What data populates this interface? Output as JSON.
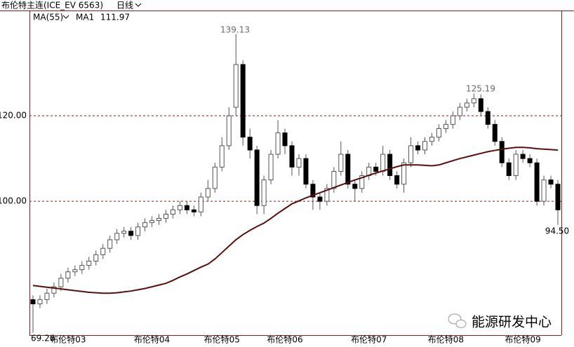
{
  "header": {
    "symbol": "布伦特主连(ICE_EV 6563)",
    "period": "日线"
  },
  "watermark": "能源研发中心",
  "chart_data": {
    "type": "candlestick",
    "indicator": "MA(55)",
    "categories": [
      null,
      null,
      null,
      null,
      null,
      "布伦特03",
      null,
      null,
      null,
      null,
      null,
      null,
      null,
      null,
      null,
      null,
      null,
      "布伦特04",
      null,
      null,
      null,
      null,
      null,
      null,
      null,
      null,
      null,
      "布伦特05",
      null,
      null,
      null,
      null,
      null,
      null,
      null,
      null,
      "布伦特06",
      null,
      null,
      null,
      null,
      null,
      null,
      null,
      null,
      null,
      null,
      null,
      "布伦特07",
      null,
      null,
      null,
      null,
      null,
      null,
      null,
      null,
      null,
      null,
      "布伦特08",
      null,
      null,
      null,
      null,
      null,
      null,
      null,
      null,
      null,
      null,
      "布伦特09",
      null,
      null,
      null,
      null,
      null
    ],
    "open": [
      77,
      76,
      77,
      78.5,
      80,
      82,
      83.5,
      84,
      85,
      86,
      87.5,
      89,
      91,
      92.5,
      93,
      92,
      94,
      95,
      95.5,
      96,
      97,
      98,
      99,
      98,
      97.5,
      101,
      103,
      108,
      113,
      122,
      132,
      115,
      112,
      99,
      105,
      111,
      116,
      113,
      108,
      110,
      104,
      101,
      100,
      103,
      107,
      111,
      104,
      103,
      106,
      108,
      107,
      111,
      106,
      104,
      109,
      113,
      112,
      114,
      115,
      117,
      118,
      120,
      122,
      123,
      124,
      121,
      118,
      114,
      109,
      106,
      111,
      110,
      109,
      100,
      105,
      104
    ],
    "high": [
      78,
      78,
      79.5,
      81,
      83,
      84.5,
      85,
      86,
      87,
      88.5,
      90,
      92,
      93.5,
      94,
      94,
      95,
      96,
      96.5,
      97,
      98,
      99,
      100,
      100,
      99,
      102,
      105,
      109,
      115,
      122,
      139.13,
      133,
      117,
      113,
      106,
      112,
      119,
      117,
      114,
      111,
      111,
      105,
      102,
      104,
      108,
      114,
      112,
      105,
      107,
      109,
      109,
      113,
      112,
      107,
      110,
      115,
      114,
      115,
      116,
      118,
      119,
      121,
      123,
      124,
      125.19,
      125,
      122,
      119,
      115,
      110,
      112,
      112,
      111,
      110,
      106,
      106,
      105
    ],
    "low": [
      69.26,
      75,
      76,
      77.5,
      79,
      81,
      82.5,
      83,
      84,
      85,
      86.5,
      88,
      90,
      91.5,
      91,
      91,
      93,
      94,
      94.5,
      95,
      96,
      97,
      97,
      96.5,
      96.5,
      100,
      102,
      107,
      112,
      120,
      113,
      110,
      97,
      97,
      104,
      110,
      111,
      106,
      106,
      103,
      98,
      98,
      99,
      102,
      106,
      103,
      100,
      102,
      105,
      106,
      106,
      105,
      103,
      102,
      108,
      111,
      111,
      113,
      114,
      116,
      117,
      119,
      121,
      122,
      120,
      117,
      113,
      108,
      105,
      105,
      109,
      108,
      99,
      99,
      103,
      94.5
    ],
    "close": [
      76,
      77,
      78.5,
      80,
      82,
      83.5,
      84,
      85,
      86,
      87.5,
      89,
      91,
      92.5,
      93,
      92,
      94,
      95,
      95.5,
      96,
      97,
      98,
      99,
      98,
      97.5,
      101,
      103,
      108,
      113,
      120,
      132,
      115,
      112,
      99,
      105,
      111,
      116,
      113,
      108,
      110,
      104,
      101,
      100,
      103,
      107,
      111,
      104,
      103,
      106,
      108,
      107,
      111,
      106,
      104,
      109,
      113,
      112,
      114,
      115,
      117,
      118,
      120,
      122,
      123,
      124,
      121,
      118,
      114,
      109,
      106,
      111,
      110,
      109,
      100,
      105,
      104,
      98
    ],
    "series": [
      {
        "name": "MA1",
        "color": "#5a0f0f",
        "values": [
          80.3,
          80.1,
          79.9,
          79.7,
          79.5,
          79.3,
          79.1,
          78.9,
          78.7,
          78.6,
          78.5,
          78.5,
          78.6,
          78.8,
          79,
          79.3,
          79.6,
          80,
          80.4,
          80.8,
          81.5,
          82.3,
          83,
          83.8,
          84.6,
          85.3,
          86.5,
          88,
          89.5,
          91,
          92.2,
          93.2,
          94.1,
          94.9,
          96,
          97.2,
          98.3,
          99.4,
          100.1,
          100.8,
          101.4,
          102,
          102.6,
          103.2,
          103.8,
          104.4,
          105,
          105.5,
          106.1,
          106.6,
          107.1,
          107.6,
          108.1,
          108.5,
          108.5,
          108.5,
          108.4,
          108.3,
          108.5,
          109,
          109.5,
          110,
          110.4,
          110.8,
          111.2,
          111.6,
          111.9,
          112.2,
          112.4,
          112.6,
          112.6,
          112.5,
          112.3,
          112.2,
          112.1,
          111.97
        ]
      }
    ],
    "annotations": [
      "139.13",
      "125.19",
      "94.50",
      "69.26"
    ],
    "ylim": [
      68.7,
      144.3
    ],
    "yticks": [
      {
        "value": 100,
        "label": "100.00"
      },
      {
        "value": 120,
        "label": "120.00"
      }
    ],
    "grid": true,
    "up_color": "#ffffff",
    "down_color": "#000000",
    "wick_color": "#555555"
  }
}
